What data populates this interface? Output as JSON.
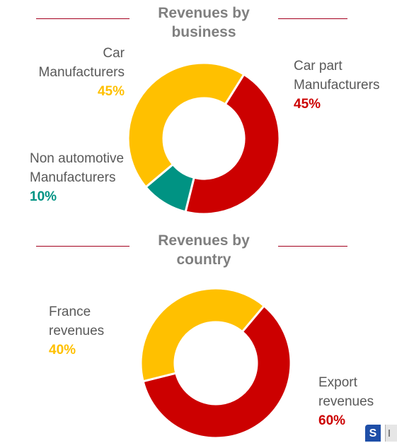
{
  "chart_data": [
    {
      "type": "pie",
      "title": "Revenues by business",
      "title_lines": [
        "Revenues by",
        "business"
      ],
      "slices": [
        {
          "label_lines": [
            "Car part",
            "Manufacturers"
          ],
          "value": 45,
          "value_label": "45%",
          "color": "#cc0000"
        },
        {
          "label_lines": [
            "Non automotive",
            "Manufacturers"
          ],
          "value": 10,
          "value_label": "10%",
          "color": "#009383"
        },
        {
          "label_lines": [
            "Car",
            "Manufacturers"
          ],
          "value": 45,
          "value_label": "45%",
          "color": "#ffc000"
        }
      ]
    },
    {
      "type": "pie",
      "title": "Revenues by country",
      "title_lines": [
        "Revenues by",
        "country"
      ],
      "slices": [
        {
          "label_lines": [
            "Export",
            "revenues"
          ],
          "value": 60,
          "value_label": "60%",
          "color": "#cc0000"
        },
        {
          "label_lines": [
            "France",
            "revenues"
          ],
          "value": 40,
          "value_label": "40%",
          "color": "#ffc000"
        }
      ]
    }
  ],
  "corner": {
    "s_label": "S"
  },
  "colors": {
    "title_rule": "#a3001e",
    "label_text": "#595959",
    "title_text": "#7f7f7f"
  }
}
